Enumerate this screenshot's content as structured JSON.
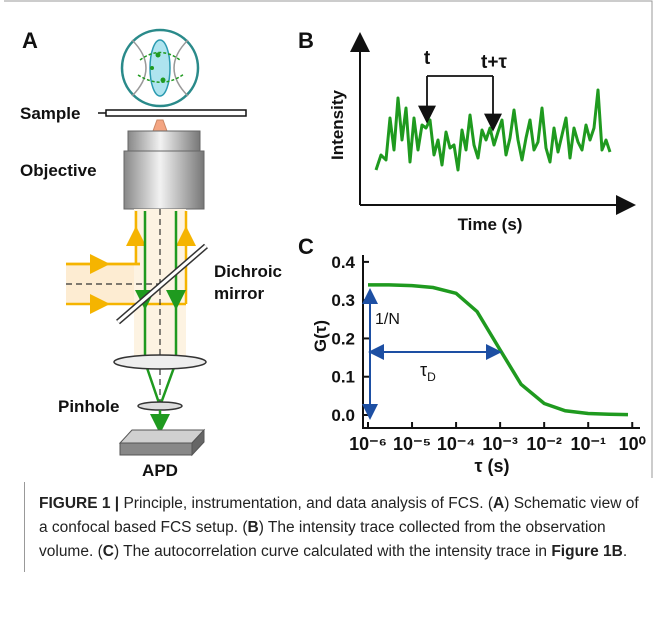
{
  "panel_labels": [
    "A",
    "B",
    "C"
  ],
  "panel_a": {
    "sample": "Sample",
    "objective": "Objective",
    "dichroic": [
      "Dichroic",
      "mirror"
    ],
    "pinhole": "Pinhole",
    "apd": "APD"
  },
  "panel_b": {
    "y_label": "Intensity",
    "x_label": "Time (s)",
    "t_label": "t",
    "t_tau_label": "t+τ"
  },
  "chart_data": {
    "type": "line",
    "y_label": "G(τ)",
    "x_label": "τ (s)",
    "log_x": true,
    "color": "#1f9a1f",
    "x": [
      1e-06,
      3e-06,
      1e-05,
      3e-05,
      0.0001,
      0.0003,
      0.001,
      0.003,
      0.01,
      0.03,
      0.1,
      0.3,
      0.8
    ],
    "values": [
      0.34,
      0.34,
      0.338,
      0.333,
      0.318,
      0.27,
      0.17,
      0.08,
      0.03,
      0.011,
      0.004,
      0.002,
      0.001
    ],
    "xlim": [
      7.7e-07,
      1.5
    ],
    "ylim": [
      -0.034,
      0.418
    ],
    "xticks": [
      {
        "value": 1e-06,
        "label": "10⁻⁶"
      },
      {
        "value": 1e-05,
        "label": "10⁻⁵"
      },
      {
        "value": 0.0001,
        "label": "10⁻⁴"
      },
      {
        "value": 0.001,
        "label": "10⁻³"
      },
      {
        "value": 0.01,
        "label": "10⁻²"
      },
      {
        "value": 0.1,
        "label": "10⁻¹"
      },
      {
        "value": 1,
        "label": "10⁰"
      }
    ],
    "yticks": [
      {
        "value": 0,
        "label": "0.0"
      },
      0.1,
      0.2,
      0.3,
      0.4
    ],
    "annotations": {
      "amplitude": "1/N",
      "diffusion_time": {
        "symbol": "τ",
        "subscript": "D"
      }
    }
  },
  "caption": [
    {
      "text": "FIGURE 1 |",
      "bold": true
    },
    {
      "text": " Principle, instrumentation, and data analysis of FCS. (",
      "bold": false
    },
    {
      "text": "A",
      "bold": true
    },
    {
      "text": ") Schematic view of a confocal based FCS setup. (",
      "bold": false
    },
    {
      "text": "B",
      "bold": true
    },
    {
      "text": ") The intensity trace collected from the observation volume. (",
      "bold": false
    },
    {
      "text": "C",
      "bold": true
    },
    {
      "text": ") The autocorrelation curve calculated with the intensity trace in ",
      "bold": false
    },
    {
      "text": "Figure 1B",
      "bold": true
    },
    {
      "text": ".",
      "bold": false
    }
  ]
}
